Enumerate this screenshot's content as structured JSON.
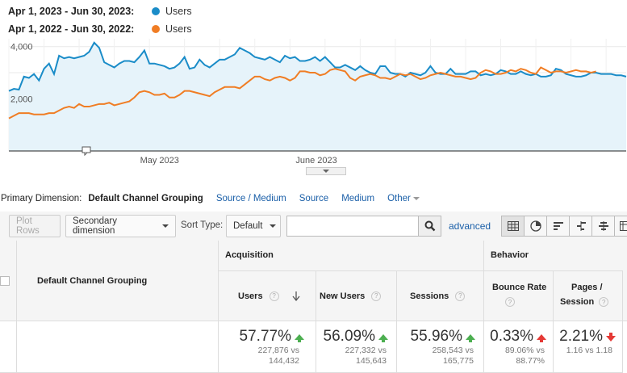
{
  "legend": [
    {
      "range": "Apr 1, 2023 - Jun 30, 2023:",
      "series": "Users",
      "color": "#1a8cc8"
    },
    {
      "range": "Apr 1, 2022 - Jun 30, 2022:",
      "series": "Users",
      "color": "#f07d24"
    }
  ],
  "chart_data": {
    "type": "line",
    "ylim": [
      0,
      4300
    ],
    "yticks": [
      "4,000",
      "2,000"
    ],
    "ytick_values": [
      4000,
      2000
    ],
    "xticks": [
      "May 2023",
      "June 2023"
    ],
    "xtick_days": [
      30,
      61
    ],
    "grid": true,
    "series": [
      {
        "name": "Users",
        "period": "Apr 1, 2023 - Jun 30, 2023",
        "color": "#1a8cc8",
        "fill": true,
        "values": [
          2300,
          2380,
          2350,
          2850,
          2800,
          2950,
          2700,
          3150,
          3350,
          2950,
          3650,
          3550,
          3600,
          3550,
          3600,
          3650,
          3800,
          4150,
          3950,
          3400,
          3300,
          3200,
          3350,
          3450,
          3450,
          3400,
          3600,
          3850,
          3350,
          3350,
          3300,
          3250,
          3150,
          3200,
          3350,
          3600,
          3150,
          3200,
          3500,
          3300,
          3200,
          3350,
          3500,
          3500,
          3600,
          3700,
          3950,
          3850,
          3750,
          3600,
          3550,
          3500,
          3600,
          3500,
          3400,
          3650,
          3550,
          3600,
          3450,
          3450,
          3500,
          3600,
          3450,
          3600,
          3400,
          3200,
          3200,
          3300,
          3200,
          3100,
          3250,
          3100,
          3000,
          2950,
          3250,
          3250,
          3000,
          2950,
          2950,
          2850,
          3000,
          2950,
          2900,
          3000,
          3250,
          3000,
          2950,
          2950,
          3150,
          2950,
          2950,
          2950,
          3050,
          3050,
          2900,
          2950,
          2900,
          2950,
          3100,
          3050,
          2950,
          2950,
          3050,
          2950,
          2900,
          2950,
          2850,
          2850,
          2900,
          3150,
          3100,
          2950,
          2900,
          2850,
          2850,
          2900,
          3000,
          3000,
          2950,
          2950,
          2950,
          2900,
          2900,
          2850
        ]
      },
      {
        "name": "Users",
        "period": "Apr 1, 2022 - Jun 30, 2022",
        "color": "#f07d24",
        "fill": false,
        "values": [
          1250,
          1350,
          1450,
          1450,
          1450,
          1400,
          1400,
          1400,
          1450,
          1450,
          1550,
          1650,
          1700,
          1650,
          1800,
          1700,
          1700,
          1750,
          1800,
          1800,
          1850,
          1750,
          1800,
          1850,
          1900,
          2050,
          2250,
          2300,
          2250,
          2150,
          2150,
          2200,
          2050,
          2050,
          2150,
          2300,
          2300,
          2250,
          2200,
          2150,
          2100,
          2250,
          2350,
          2450,
          2450,
          2450,
          2400,
          2550,
          2700,
          2850,
          2850,
          2750,
          2700,
          2800,
          2850,
          2800,
          2700,
          2800,
          3050,
          3050,
          3000,
          3000,
          2900,
          2950,
          3100,
          3150,
          3100,
          3050,
          2800,
          2700,
          2850,
          2900,
          2950,
          2900,
          2800,
          2800,
          2750,
          2850,
          2950,
          2900,
          2950,
          2850,
          2750,
          2800,
          2900,
          2950,
          3000,
          2950,
          2900,
          2850,
          2850,
          2800,
          2750,
          2800,
          3000,
          3100,
          3050,
          2950,
          2950,
          3000,
          3100,
          3050,
          3150,
          3100,
          3000,
          2950,
          3200,
          3100,
          3000,
          3050,
          3050,
          3000,
          3050,
          3100,
          3050,
          3050,
          3000,
          3050
        ]
      }
    ],
    "annotation_icon": "comment-icon"
  },
  "primary_dimension": {
    "label": "Primary Dimension:",
    "active": "Default Channel Grouping",
    "options": [
      "Source / Medium",
      "Source",
      "Medium",
      "Other"
    ]
  },
  "toolbar": {
    "plot_rows": "Plot Rows",
    "secondary_dimension": "Secondary dimension",
    "sort_type_label": "Sort Type:",
    "sort_type_value": "Default",
    "search_placeholder": "",
    "advanced": "advanced",
    "view_icons": [
      "table-view-icon",
      "pie-view-icon",
      "performance-view-icon",
      "comparison-view-icon",
      "term-cloud-icon",
      "pivot-view-icon"
    ]
  },
  "table": {
    "dimension_header": "Default Channel Grouping",
    "groups": [
      "Acquisition",
      "Behavior"
    ],
    "columns": [
      {
        "label": "Users",
        "value": "57.77%",
        "trend": "up",
        "trend_color": "#4caf50",
        "sub1": "227,876 vs",
        "sub2": "144,432"
      },
      {
        "label": "New Users",
        "value": "56.09%",
        "trend": "up",
        "trend_color": "#4caf50",
        "sub1": "227,332 vs",
        "sub2": "145,643"
      },
      {
        "label": "Sessions",
        "value": "55.96%",
        "trend": "up",
        "trend_color": "#4caf50",
        "sub1": "258,543 vs",
        "sub2": "165,775"
      },
      {
        "label": "Bounce Rate",
        "value": "0.33%",
        "trend": "up",
        "trend_color": "#e53935",
        "sub1": "89.06% vs",
        "sub2": "88.77%"
      },
      {
        "label_line1": "Pages /",
        "label_line2": "Session",
        "value": "2.21%",
        "trend": "down",
        "trend_color": "#e53935",
        "sub1": "1.16 vs 1.18",
        "sub2": ""
      }
    ]
  }
}
